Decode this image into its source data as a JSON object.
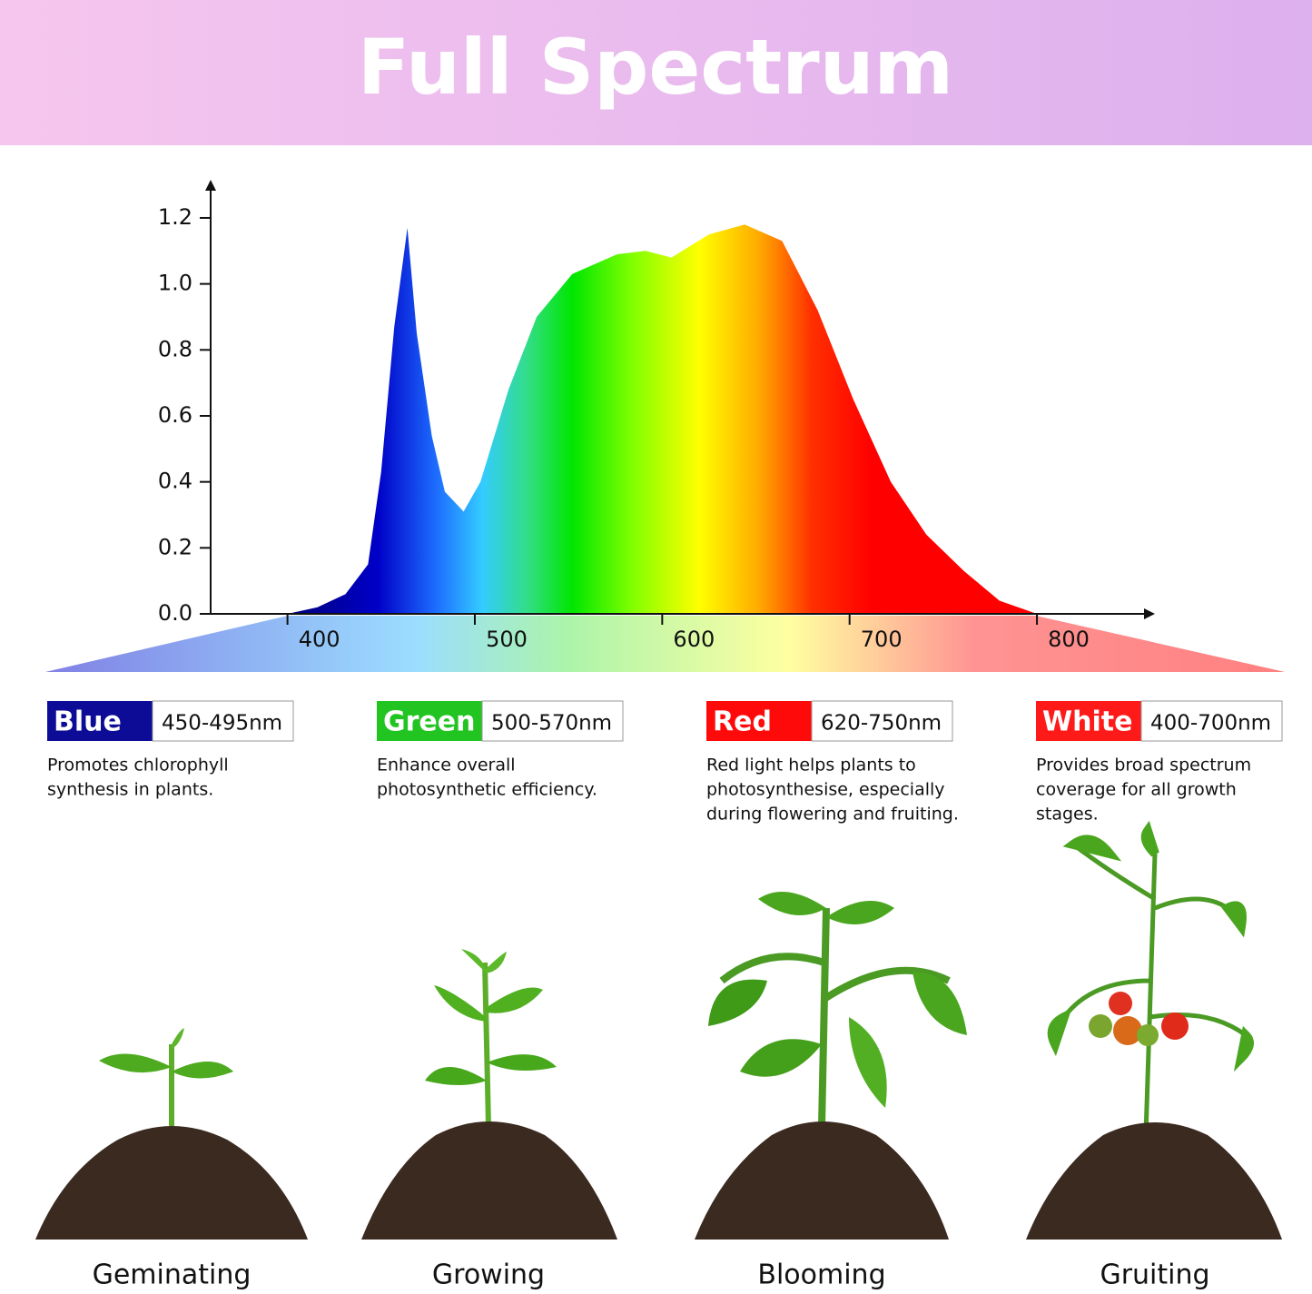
{
  "header": {
    "title": "Full Spectrum"
  },
  "chart_data": {
    "type": "area",
    "x": [
      400,
      416,
      431,
      443,
      450,
      457,
      464,
      469,
      477,
      484,
      494,
      503,
      518,
      533,
      552,
      576,
      591,
      605,
      625,
      644,
      664,
      683,
      702,
      722,
      741,
      761,
      780,
      800
    ],
    "values": [
      0,
      0.02,
      0.06,
      0.15,
      0.43,
      0.87,
      1.17,
      0.85,
      0.54,
      0.37,
      0.31,
      0.4,
      0.68,
      0.9,
      1.03,
      1.09,
      1.1,
      1.08,
      1.15,
      1.18,
      1.13,
      0.92,
      0.65,
      0.4,
      0.24,
      0.13,
      0.04,
      0
    ],
    "xlim": [
      359,
      862
    ],
    "ylim": [
      0,
      1.31
    ],
    "xticks": [
      400,
      500,
      600,
      700,
      800
    ],
    "yticks": [
      {
        "value": 0,
        "label": "0.0"
      },
      0.2,
      0.4,
      0.6,
      0.8,
      {
        "value": 1,
        "label": "1.0"
      },
      1.2
    ]
  },
  "cards": [
    {
      "label": "Blue",
      "range": "450-495nm",
      "color": "#0c0c96",
      "lines": [
        "Promotes chlorophyll",
        "synthesis in plants."
      ]
    },
    {
      "label": "Green",
      "range": "500-570nm",
      "color": "#22c422",
      "lines": [
        "Enhance overall",
        "photosynthetic efficiency."
      ]
    },
    {
      "label": "Red",
      "range": "620-750nm",
      "color": "#ff0a0a",
      "lines": [
        "Red light helps plants to",
        "photosynthesise, especially",
        "during flowering and fruiting."
      ]
    },
    {
      "label": "White",
      "range": "400-700nm",
      "color": "#ff1a1a",
      "lines": [
        "Provides broad spectrum",
        "coverage for all growth",
        "stages."
      ]
    }
  ],
  "stages": [
    "Geminating",
    "Growing",
    "Blooming",
    "Gruiting"
  ]
}
